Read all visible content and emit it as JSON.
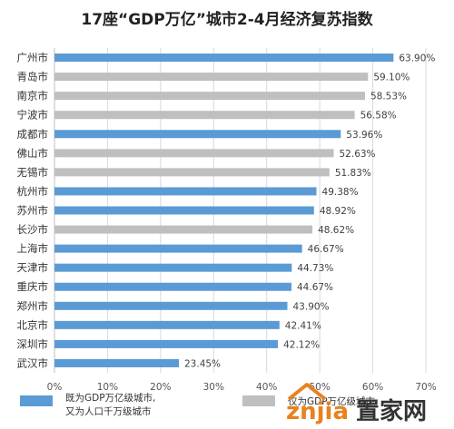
{
  "chart_data": {
    "type": "bar",
    "orientation": "horizontal",
    "title": "17座“GDP万亿”城市2-4月经济复苏指数",
    "categories": [
      "广州市",
      "青岛市",
      "南京市",
      "宁波市",
      "成都市",
      "佛山市",
      "无锡市",
      "杭州市",
      "苏州市",
      "长沙市",
      "上海市",
      "天津市",
      "重庆市",
      "郑州市",
      "北京市",
      "深圳市",
      "武汉市"
    ],
    "values": [
      63.9,
      59.1,
      58.53,
      56.58,
      53.96,
      52.63,
      51.83,
      49.38,
      48.92,
      48.62,
      46.67,
      44.73,
      44.67,
      43.9,
      42.41,
      42.12,
      23.45
    ],
    "value_labels": [
      "63.90%",
      "59.10%",
      "58.53%",
      "56.58%",
      "53.96%",
      "52.63%",
      "51.83%",
      "49.38%",
      "48.92%",
      "48.62%",
      "46.67%",
      "44.73%",
      "44.67%",
      "43.90%",
      "42.41%",
      "42.12%",
      "23.45%"
    ],
    "group": [
      "both",
      "gdp_only",
      "gdp_only",
      "gdp_only",
      "both",
      "gdp_only",
      "gdp_only",
      "both",
      "both",
      "gdp_only",
      "both",
      "both",
      "both",
      "both",
      "both",
      "both",
      "both"
    ],
    "xlim": [
      0,
      70
    ],
    "x_ticks": [
      0,
      10,
      20,
      30,
      40,
      50,
      60,
      70
    ],
    "x_tick_labels": [
      "0%",
      "10%",
      "20%",
      "30%",
      "40%",
      "50%",
      "60%",
      "70%"
    ],
    "xlabel": "",
    "ylabel": "",
    "grid": true,
    "legend_position": "bottom",
    "legend": [
      {
        "key": "both",
        "label_lines": [
          "既为GDP万亿级城市,",
          "又为人口千万级城市"
        ],
        "color": "#5B9BD5"
      },
      {
        "key": "gdp_only",
        "label_lines": [
          "仅为GDP万亿级城市"
        ],
        "color": "#BFBFBF"
      }
    ]
  },
  "watermark": {
    "logo_text": "znjia",
    "suffix": "置家网",
    "colors": {
      "logo": "#E8821C",
      "text": "#333333"
    }
  }
}
